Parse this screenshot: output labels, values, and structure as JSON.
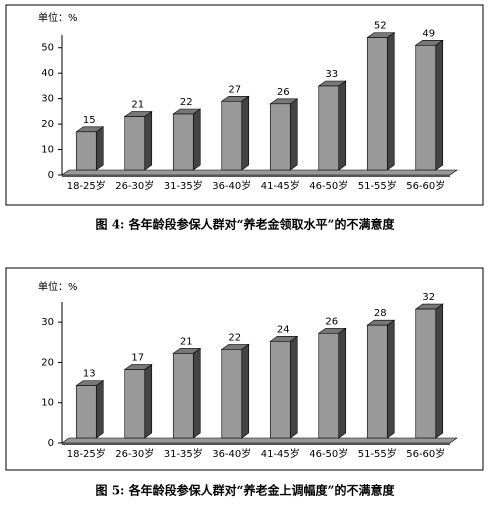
{
  "chart_data": [
    {
      "type": "bar3d",
      "unit_label": "单位：%",
      "caption": "图 4: 各年龄段参保人群对“养老金领取水平”的不满意度",
      "categories": [
        "18-25岁",
        "26-30岁",
        "31-35岁",
        "36-40岁",
        "41-45岁",
        "46-50岁",
        "51-55岁",
        "56-60岁"
      ],
      "values": [
        15,
        21,
        22,
        27,
        26,
        33,
        52,
        49
      ],
      "color": "#999999",
      "ylim": [
        0,
        55
      ],
      "yticks": [
        0,
        10,
        20,
        30,
        40,
        50
      ]
    },
    {
      "type": "bar3d",
      "unit_label": "单位：%",
      "caption": "图 5: 各年龄段参保人群对“养老金上调幅度”的不满意度",
      "categories": [
        "18-25岁",
        "26-30岁",
        "31-35岁",
        "36-40岁",
        "41-45岁",
        "46-50岁",
        "51-55岁",
        "56-60岁"
      ],
      "values": [
        13,
        17,
        21,
        22,
        24,
        26,
        28,
        32
      ],
      "color": "#999999",
      "ylim": [
        0,
        35
      ],
      "yticks": [
        0,
        10,
        20,
        30
      ]
    }
  ]
}
